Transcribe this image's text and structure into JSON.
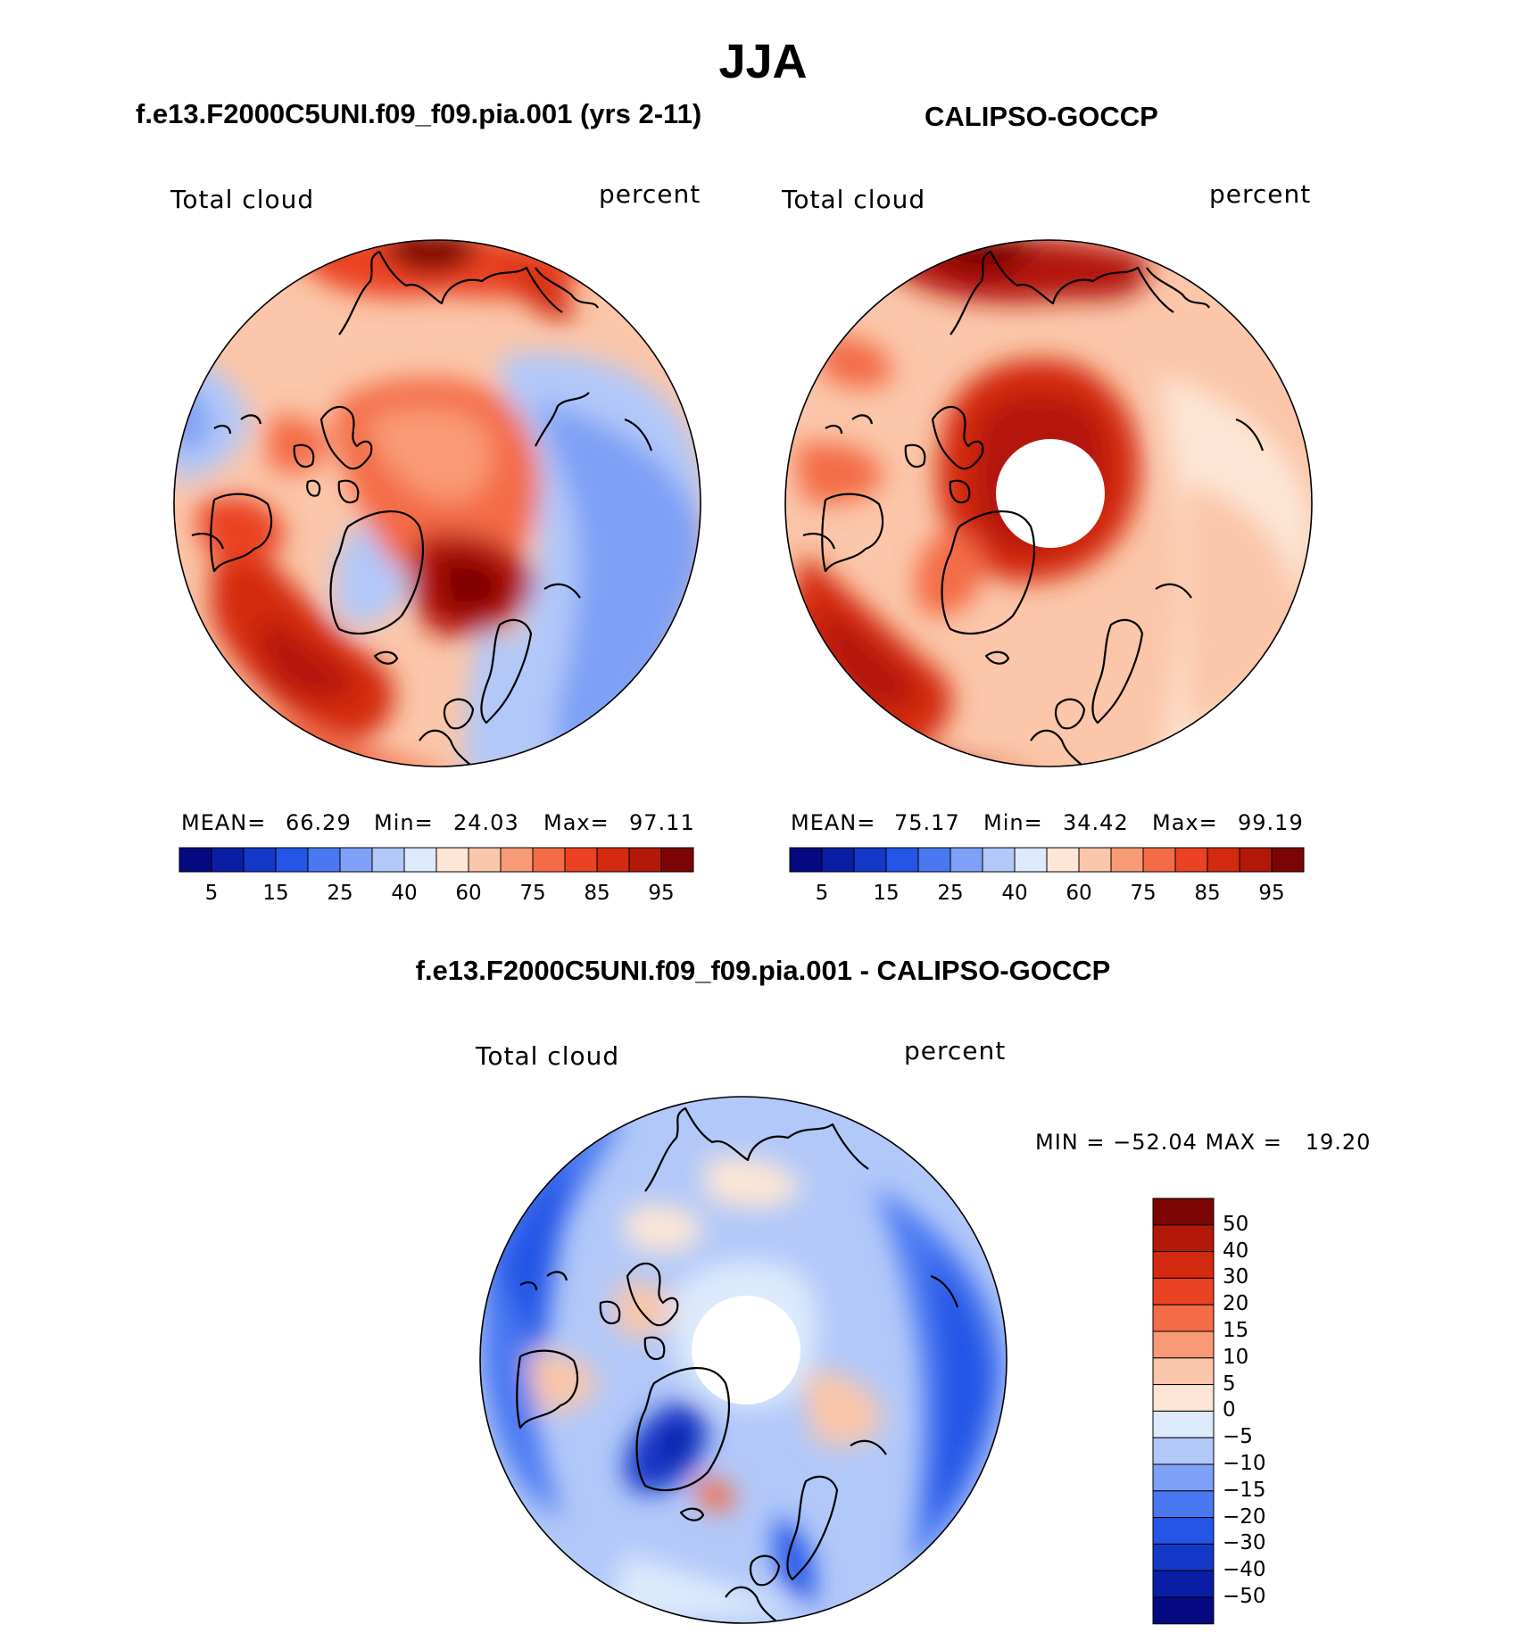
{
  "figure": {
    "title": "JJA",
    "left_panel_title": "f.e13.F2000C5UNI.f09_f09.pia.001 (yrs 2-11)",
    "right_panel_title": "CALIPSO-GOCCP",
    "diff_panel_title": "f.e13.F2000C5UNI.f09_f09.pia.001 - CALIPSO-GOCCP"
  },
  "panels": [
    {
      "variable": "Total cloud",
      "units": "percent",
      "mean_label": "MEAN=",
      "mean": "66.29",
      "min_label": "Min=",
      "min": "24.03",
      "max_label": "Max=",
      "max": "97.11"
    },
    {
      "variable": "Total cloud",
      "units": "percent",
      "mean_label": "MEAN=",
      "mean": "75.17",
      "min_label": "Min=",
      "min": "34.42",
      "max_label": "Max=",
      "max": "99.19"
    }
  ],
  "diff_panel": {
    "variable": "Total cloud",
    "units": "percent",
    "stats": "MIN = −52.04 MAX =   19.20"
  },
  "colorbar_abs": {
    "ticks": [
      "5",
      "15",
      "25",
      "40",
      "60",
      "75",
      "85",
      "95"
    ],
    "colors": [
      "#050a82",
      "#0a1ea5",
      "#1438c8",
      "#2455e6",
      "#4a78f2",
      "#7ea0f6",
      "#b2c8f9",
      "#dceafc",
      "#fde6d6",
      "#fbc6a9",
      "#f99a76",
      "#f46c46",
      "#ea4222",
      "#d42a10",
      "#b41808",
      "#7c0404"
    ]
  },
  "colorbar_diff": {
    "labels": [
      "50",
      "40",
      "30",
      "20",
      "15",
      "10",
      "5",
      "0",
      "−5",
      "−10",
      "−15",
      "−20",
      "−30",
      "−40",
      "−50"
    ],
    "colors": [
      "#7c0404",
      "#b41808",
      "#d42a10",
      "#ea4222",
      "#f46c46",
      "#f99a76",
      "#fbc6a9",
      "#fde6d6",
      "#dceafc",
      "#b2c8f9",
      "#7ea0f6",
      "#4a78f2",
      "#2455e6",
      "#1438c8",
      "#0a1ea5",
      "#050a82"
    ]
  }
}
